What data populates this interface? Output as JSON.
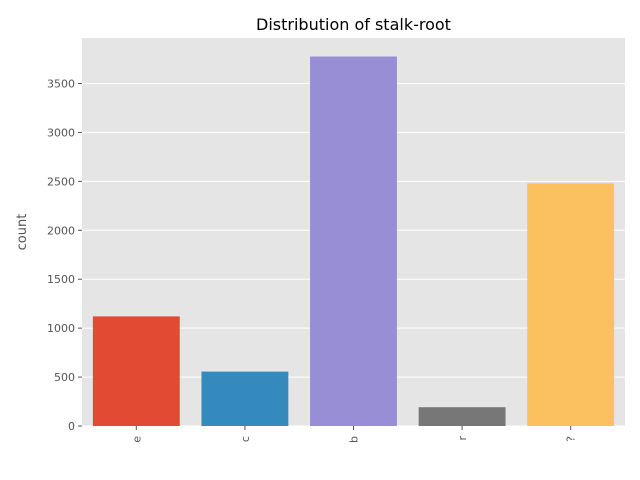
{
  "chart_data": {
    "type": "bar",
    "title": "Distribution of stalk-root",
    "xlabel": "",
    "ylabel": "count",
    "categories": [
      "e",
      "c",
      "b",
      "r",
      "?"
    ],
    "values": [
      1120,
      556,
      3776,
      192,
      2480
    ],
    "colors": [
      "#E24A33",
      "#348ABD",
      "#988ED5",
      "#777777",
      "#FBC15E"
    ],
    "ylim": [
      0,
      3965
    ],
    "yticks": [
      0,
      500,
      1000,
      1500,
      2000,
      2500,
      3000,
      3500
    ],
    "grid": true,
    "background": "#E5E5E5"
  }
}
